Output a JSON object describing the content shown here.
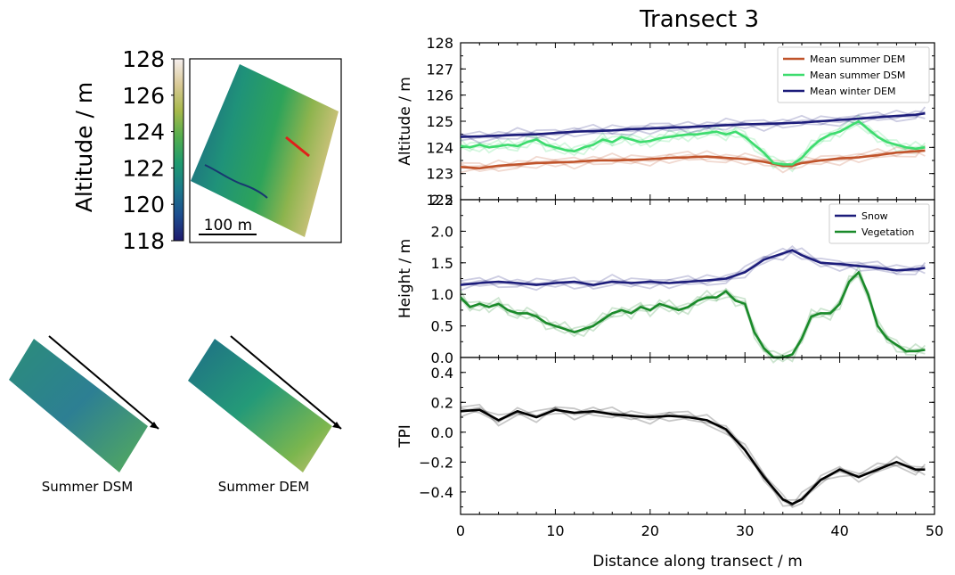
{
  "figure": {
    "title": "Transect 3",
    "colorbar": {
      "label": "Altitude / m",
      "range": [
        118,
        128
      ],
      "ticks": [
        "128",
        "126",
        "124",
        "122",
        "120",
        "118"
      ],
      "colormap": [
        "#1e1a6e",
        "#1d4e8f",
        "#1b7a8a",
        "#1f9a6e",
        "#53ad4e",
        "#a7b94b",
        "#d9c996",
        "#f6efef"
      ]
    },
    "map_scale_label": "100 m",
    "thumbnails": [
      {
        "label": "Summer DSM"
      },
      {
        "label": "Summer DEM"
      }
    ],
    "transect_line_color": "#e0201a"
  },
  "chart_data": [
    {
      "type": "line",
      "ylabel": "Altitude / m",
      "ylim": [
        122,
        128
      ],
      "yticks": [
        122,
        123,
        124,
        125,
        126,
        127,
        128
      ],
      "xlim": [
        0,
        50
      ],
      "legend_position": "top-right",
      "series": [
        {
          "name": "Mean summer DEM",
          "color": "#c0532a",
          "x": [
            0,
            2,
            4,
            6,
            8,
            10,
            12,
            14,
            16,
            18,
            20,
            22,
            24,
            26,
            28,
            30,
            32,
            34,
            35,
            36,
            38,
            40,
            42,
            44,
            46,
            48,
            49
          ],
          "y": [
            123.25,
            123.2,
            123.3,
            123.35,
            123.4,
            123.42,
            123.45,
            123.5,
            123.5,
            123.52,
            123.55,
            123.6,
            123.62,
            123.65,
            123.6,
            123.55,
            123.45,
            123.3,
            123.3,
            123.4,
            123.5,
            123.58,
            123.62,
            123.7,
            123.8,
            123.85,
            123.88
          ]
        },
        {
          "name": "Mean summer DSM",
          "color": "#3ddc6e",
          "x": [
            0,
            1,
            2,
            3,
            4,
            5,
            6,
            7,
            8,
            9,
            10,
            11,
            12,
            13,
            14,
            15,
            16,
            17,
            18,
            19,
            20,
            21,
            22,
            23,
            24,
            25,
            26,
            27,
            28,
            29,
            30,
            31,
            32,
            33,
            34,
            35,
            36,
            37,
            38,
            39,
            40,
            41,
            42,
            43,
            44,
            45,
            46,
            47,
            48,
            49
          ],
          "y": [
            124.05,
            124.0,
            124.1,
            124.0,
            124.05,
            124.1,
            124.05,
            124.2,
            124.3,
            124.1,
            124.0,
            123.9,
            123.85,
            124.0,
            124.1,
            124.3,
            124.2,
            124.4,
            124.3,
            124.2,
            124.25,
            124.35,
            124.4,
            124.45,
            124.5,
            124.5,
            124.55,
            124.6,
            124.5,
            124.6,
            124.4,
            124.1,
            123.8,
            123.4,
            123.35,
            123.35,
            123.6,
            124.0,
            124.3,
            124.5,
            124.6,
            124.8,
            125.0,
            124.7,
            124.4,
            124.2,
            124.1,
            124.0,
            123.95,
            124.0
          ]
        },
        {
          "name": "Mean winter DEM",
          "color": "#1c1c7a",
          "x": [
            0,
            2,
            4,
            6,
            8,
            10,
            12,
            14,
            16,
            18,
            20,
            22,
            24,
            26,
            28,
            30,
            32,
            34,
            36,
            38,
            40,
            42,
            44,
            46,
            48,
            49
          ],
          "y": [
            124.4,
            124.42,
            124.45,
            124.48,
            124.5,
            124.55,
            124.6,
            124.62,
            124.65,
            124.7,
            124.72,
            124.75,
            124.78,
            124.82,
            124.85,
            124.88,
            124.9,
            124.92,
            124.95,
            125.0,
            125.05,
            125.1,
            125.15,
            125.2,
            125.25,
            125.3
          ]
        }
      ]
    },
    {
      "type": "line",
      "ylabel": "Height / m",
      "ylim": [
        0,
        2.5
      ],
      "yticks": [
        0,
        0.5,
        1,
        1.5,
        2,
        2.5
      ],
      "ytick_labels": [
        "0.0",
        "0.5",
        "1.0",
        "1.5",
        "2.0",
        "2.5"
      ],
      "xlim": [
        0,
        50
      ],
      "legend_position": "top-right",
      "series": [
        {
          "name": "Snow",
          "color": "#1c1c7a",
          "x": [
            0,
            2,
            4,
            6,
            8,
            10,
            12,
            14,
            16,
            18,
            20,
            22,
            24,
            26,
            28,
            30,
            32,
            34,
            35,
            36,
            38,
            40,
            42,
            44,
            46,
            48,
            49
          ],
          "y": [
            1.15,
            1.18,
            1.2,
            1.18,
            1.15,
            1.18,
            1.2,
            1.15,
            1.2,
            1.18,
            1.2,
            1.18,
            1.2,
            1.22,
            1.25,
            1.35,
            1.55,
            1.65,
            1.7,
            1.62,
            1.5,
            1.48,
            1.45,
            1.42,
            1.38,
            1.4,
            1.42
          ]
        },
        {
          "name": "Vegetation",
          "color": "#1a8a2a",
          "x": [
            0,
            1,
            2,
            3,
            4,
            5,
            6,
            7,
            8,
            9,
            10,
            11,
            12,
            13,
            14,
            15,
            16,
            17,
            18,
            19,
            20,
            21,
            22,
            23,
            24,
            25,
            26,
            27,
            28,
            29,
            30,
            31,
            32,
            33,
            34,
            35,
            36,
            37,
            38,
            39,
            40,
            41,
            42,
            43,
            44,
            45,
            46,
            47,
            48,
            49
          ],
          "y": [
            0.95,
            0.8,
            0.85,
            0.8,
            0.85,
            0.75,
            0.7,
            0.7,
            0.65,
            0.55,
            0.5,
            0.45,
            0.4,
            0.45,
            0.5,
            0.6,
            0.7,
            0.75,
            0.7,
            0.8,
            0.75,
            0.85,
            0.8,
            0.75,
            0.8,
            0.9,
            0.95,
            0.95,
            1.05,
            0.9,
            0.85,
            0.4,
            0.15,
            0.0,
            0.0,
            0.05,
            0.3,
            0.65,
            0.7,
            0.7,
            0.85,
            1.2,
            1.35,
            1.0,
            0.5,
            0.3,
            0.2,
            0.1,
            0.1,
            0.12
          ]
        }
      ]
    },
    {
      "type": "line",
      "ylabel": "TPI",
      "xlabel": "Distance along transect / m",
      "ylim": [
        -0.55,
        0.5
      ],
      "yticks": [
        -0.4,
        -0.2,
        0.0,
        0.2,
        0.4
      ],
      "ytick_labels": [
        "−0.4",
        "−0.2",
        "0.0",
        "0.2",
        "0.4"
      ],
      "xlim": [
        0,
        50
      ],
      "xticks": [
        0,
        10,
        20,
        30,
        40,
        50
      ],
      "series": [
        {
          "color": "#000000",
          "x": [
            0,
            2,
            4,
            6,
            8,
            10,
            12,
            14,
            16,
            18,
            20,
            22,
            24,
            26,
            28,
            30,
            32,
            34,
            35,
            36,
            38,
            40,
            42,
            44,
            46,
            48,
            49
          ],
          "y": [
            0.14,
            0.15,
            0.08,
            0.14,
            0.1,
            0.15,
            0.13,
            0.14,
            0.12,
            0.11,
            0.1,
            0.11,
            0.1,
            0.08,
            0.02,
            -0.12,
            -0.3,
            -0.45,
            -0.48,
            -0.45,
            -0.32,
            -0.25,
            -0.3,
            -0.25,
            -0.2,
            -0.25,
            -0.25
          ]
        }
      ]
    }
  ]
}
